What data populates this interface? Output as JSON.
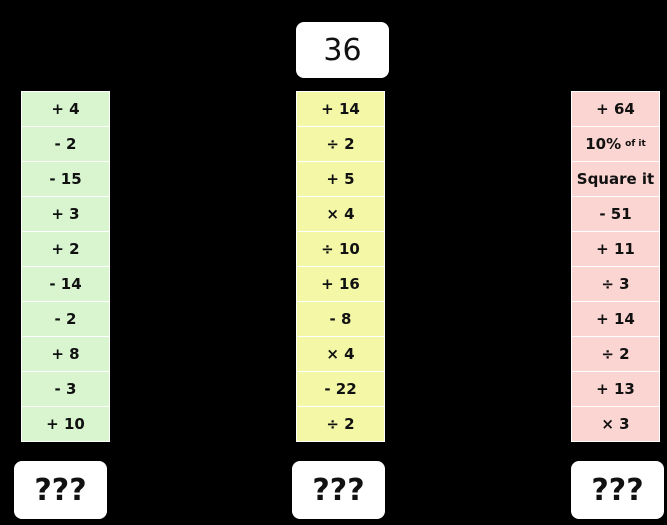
{
  "start": 36,
  "columns": [
    {
      "steps": [
        "+ 4",
        "- 2",
        "- 15",
        "+ 3",
        "+ 2",
        "- 14",
        "- 2",
        "+ 8",
        "- 3",
        "+ 10"
      ],
      "answer": "???"
    },
    {
      "steps": [
        "+ 14",
        "÷ 2",
        "+ 5",
        "× 4",
        "÷ 10",
        "+ 16",
        "- 8",
        "× 4",
        "- 22",
        "÷ 2"
      ],
      "answer": "???"
    },
    {
      "steps": [
        "+ 64",
        {
          "text": "10%",
          "small": "of it"
        },
        "Square it",
        "- 51",
        "+ 11",
        "÷ 3",
        "+ 14",
        "÷ 2",
        "+ 13",
        "× 3"
      ],
      "answer": "???"
    }
  ]
}
